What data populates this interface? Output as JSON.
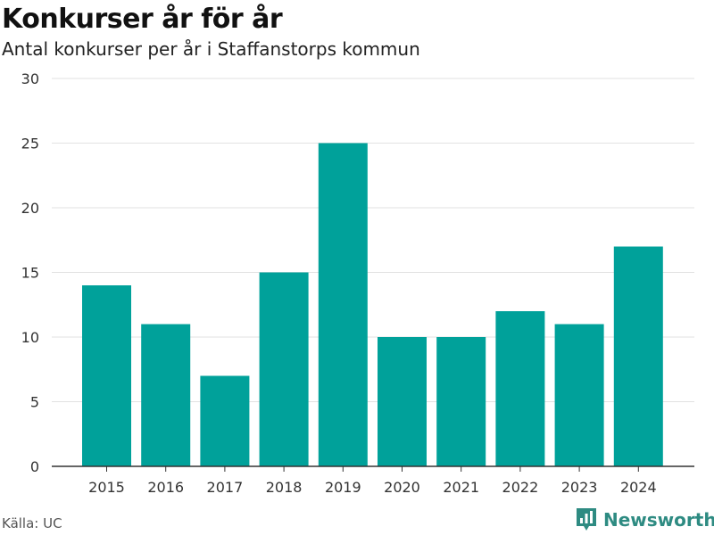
{
  "header": {
    "title": "Konkurser år för år",
    "subtitle": "Antal konkurser per år i Staffanstorps kommun"
  },
  "footer": {
    "source": "Källa: UC",
    "brand": "Newsworthy",
    "brand_icon": "newsworthy-logo-icon"
  },
  "colors": {
    "bar": "#00a19a",
    "grid": "#e2e2e2",
    "axis": "#333333",
    "brand": "#2e8b82"
  },
  "chart_data": {
    "type": "bar",
    "title": "Konkurser år för år",
    "subtitle": "Antal konkurser per år i Staffanstorps kommun",
    "categories": [
      "2015",
      "2016",
      "2017",
      "2018",
      "2019",
      "2020",
      "2021",
      "2022",
      "2023",
      "2024"
    ],
    "values": [
      14,
      11,
      7,
      15,
      25,
      10,
      10,
      12,
      11,
      17
    ],
    "ylim": [
      0,
      30
    ],
    "yticks": [
      0,
      5,
      10,
      15,
      20,
      25,
      30
    ],
    "xlabel": "",
    "ylabel": "",
    "grid": true,
    "legend": "none"
  }
}
